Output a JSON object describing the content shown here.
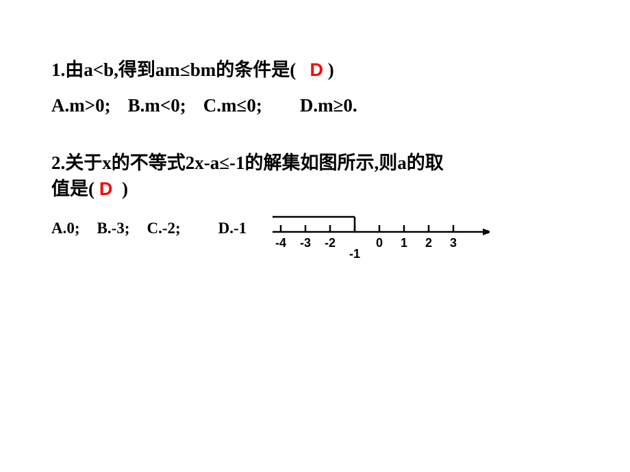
{
  "question1": {
    "prefix": "1.由a<b,得到am≤bm的条件是(",
    "answer": "D",
    "suffix": ")",
    "optionA": "A.m>0;",
    "optionB": "B.m<0;",
    "optionC": "C.m≤0;",
    "optionD": "D.m≥0."
  },
  "question2": {
    "textLine1": "2.关于x的不等式2x-a≤-1的解集如图所示,则a的取",
    "textLine2Prefix": "值是(",
    "answer": "D",
    "textLine2Suffix": ")",
    "optionA": "A.0;",
    "optionB": "B.-3;",
    "optionC": "C.-2;",
    "optionD": "D.-1"
  },
  "numberLine": {
    "ticks": [
      "-4",
      "-3",
      "-2",
      "-1",
      "0",
      "1",
      "2",
      "3"
    ],
    "endpointValue": -1,
    "tickSpacing": 36,
    "startX": 25,
    "axisY": 28,
    "tickHeight": 10,
    "bracketHeight": 22,
    "lineColor": "#000000",
    "lineWidth": 2.5,
    "labelFontSize": 18,
    "arrowWidth": 320
  }
}
